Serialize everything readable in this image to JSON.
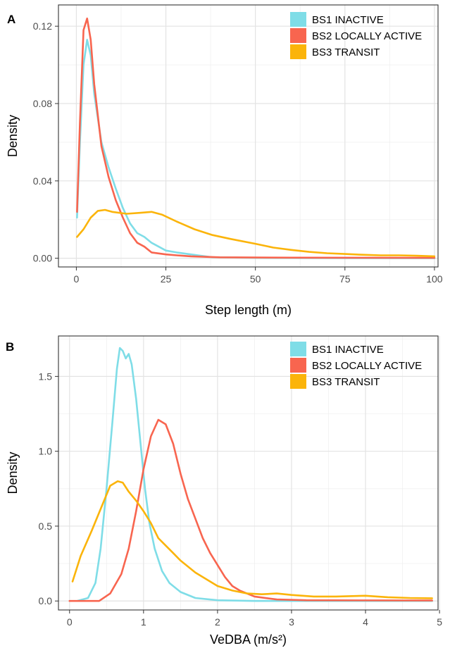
{
  "chart_data": [
    {
      "panel": "A",
      "type": "line",
      "xlabel": "Step length (m)",
      "ylabel": "Density",
      "xlim": [
        -5,
        101
      ],
      "ylim": [
        -0.0045,
        0.131
      ],
      "x_ticks": [
        0,
        25,
        50,
        75,
        100
      ],
      "x_tick_labels": [
        "0",
        "25",
        "50",
        "75",
        "100"
      ],
      "y_ticks": [
        0,
        0.04,
        0.08,
        0.12
      ],
      "y_tick_labels": [
        "0.00",
        "0.04",
        "0.08",
        "0.12"
      ],
      "grid": true,
      "legend_position": "top-right",
      "series": [
        {
          "name": "BS1 INACTIVE",
          "color": "#7fdde7",
          "points": [
            [
              0.2,
              0.021
            ],
            [
              1,
              0.06
            ],
            [
              2,
              0.1
            ],
            [
              3,
              0.113
            ],
            [
              4,
              0.105
            ],
            [
              5,
              0.085
            ],
            [
              7,
              0.06
            ],
            [
              9,
              0.047
            ],
            [
              11,
              0.036
            ],
            [
              13,
              0.026
            ],
            [
              15,
              0.018
            ],
            [
              17,
              0.013
            ],
            [
              19,
              0.011
            ],
            [
              21,
              0.008
            ],
            [
              23,
              0.006
            ],
            [
              25,
              0.004
            ],
            [
              28,
              0.003
            ],
            [
              32,
              0.002
            ],
            [
              38,
              0.0005
            ],
            [
              50,
              0.0002
            ],
            [
              75,
              0.0001
            ],
            [
              100,
              0
            ]
          ]
        },
        {
          "name": "BS2 LOCALLY ACTIVE",
          "color": "#f8654f",
          "points": [
            [
              0.2,
              0.024
            ],
            [
              1,
              0.07
            ],
            [
              2,
              0.118
            ],
            [
              3,
              0.124
            ],
            [
              4,
              0.113
            ],
            [
              5,
              0.09
            ],
            [
              7,
              0.058
            ],
            [
              9,
              0.042
            ],
            [
              11,
              0.03
            ],
            [
              13,
              0.021
            ],
            [
              15,
              0.013
            ],
            [
              17,
              0.008
            ],
            [
              19,
              0.006
            ],
            [
              21,
              0.003
            ],
            [
              25,
              0.002
            ],
            [
              28,
              0.0015
            ],
            [
              32,
              0.001
            ],
            [
              40,
              0.0005
            ],
            [
              60,
              0.0003
            ],
            [
              100,
              0.0002
            ]
          ]
        },
        {
          "name": "BS3 TRANSIT",
          "color": "#fbb40a",
          "points": [
            [
              0.2,
              0.011
            ],
            [
              2,
              0.015
            ],
            [
              4,
              0.021
            ],
            [
              6,
              0.0245
            ],
            [
              8,
              0.025
            ],
            [
              10,
              0.024
            ],
            [
              14,
              0.023
            ],
            [
              18,
              0.0235
            ],
            [
              21,
              0.024
            ],
            [
              24,
              0.0225
            ],
            [
              28,
              0.019
            ],
            [
              33,
              0.015
            ],
            [
              38,
              0.012
            ],
            [
              43,
              0.01
            ],
            [
              50,
              0.0075
            ],
            [
              55,
              0.0055
            ],
            [
              60,
              0.0043
            ],
            [
              65,
              0.0033
            ],
            [
              70,
              0.0026
            ],
            [
              75,
              0.0022
            ],
            [
              80,
              0.0018
            ],
            [
              85,
              0.0015
            ],
            [
              90,
              0.0015
            ],
            [
              95,
              0.0013
            ],
            [
              100,
              0.001
            ]
          ]
        }
      ]
    },
    {
      "panel": "B",
      "type": "line",
      "xlabel": "VeDBA (m/s²)",
      "ylabel": "Density",
      "xlim": [
        -0.15,
        4.98
      ],
      "ylim": [
        -0.06,
        1.77
      ],
      "x_ticks": [
        0,
        1,
        2,
        3,
        4,
        5
      ],
      "x_tick_labels": [
        "0",
        "1",
        "2",
        "3",
        "4",
        "5"
      ],
      "y_ticks": [
        0,
        0.5,
        1.0,
        1.5
      ],
      "y_tick_labels": [
        "0.0",
        "0.5",
        "1.0",
        "1.5"
      ],
      "grid": true,
      "legend_position": "top-right",
      "series": [
        {
          "name": "BS1 INACTIVE",
          "color": "#7fdde7",
          "points": [
            [
              0.1,
              0
            ],
            [
              0.25,
              0.02
            ],
            [
              0.35,
              0.12
            ],
            [
              0.42,
              0.35
            ],
            [
              0.5,
              0.75
            ],
            [
              0.58,
              1.2
            ],
            [
              0.64,
              1.55
            ],
            [
              0.68,
              1.69
            ],
            [
              0.72,
              1.67
            ],
            [
              0.76,
              1.62
            ],
            [
              0.8,
              1.65
            ],
            [
              0.84,
              1.58
            ],
            [
              0.9,
              1.35
            ],
            [
              0.96,
              1.05
            ],
            [
              1.02,
              0.75
            ],
            [
              1.08,
              0.52
            ],
            [
              1.15,
              0.35
            ],
            [
              1.25,
              0.2
            ],
            [
              1.35,
              0.12
            ],
            [
              1.5,
              0.06
            ],
            [
              1.7,
              0.02
            ],
            [
              2,
              0.005
            ],
            [
              2.5,
              0
            ],
            [
              4.9,
              0
            ]
          ]
        },
        {
          "name": "BS2 LOCALLY ACTIVE",
          "color": "#f8654f",
          "points": [
            [
              0,
              0
            ],
            [
              0.4,
              0
            ],
            [
              0.55,
              0.05
            ],
            [
              0.7,
              0.18
            ],
            [
              0.8,
              0.35
            ],
            [
              0.9,
              0.6
            ],
            [
              1.0,
              0.88
            ],
            [
              1.1,
              1.1
            ],
            [
              1.2,
              1.21
            ],
            [
              1.3,
              1.18
            ],
            [
              1.4,
              1.05
            ],
            [
              1.5,
              0.85
            ],
            [
              1.6,
              0.68
            ],
            [
              1.7,
              0.55
            ],
            [
              1.8,
              0.42
            ],
            [
              1.9,
              0.32
            ],
            [
              2.0,
              0.24
            ],
            [
              2.1,
              0.16
            ],
            [
              2.2,
              0.1
            ],
            [
              2.3,
              0.07
            ],
            [
              2.5,
              0.03
            ],
            [
              2.8,
              0.01
            ],
            [
              3.2,
              0.005
            ],
            [
              4.9,
              0.003
            ]
          ]
        },
        {
          "name": "BS3 TRANSIT",
          "color": "#fbb40a",
          "points": [
            [
              0.04,
              0.13
            ],
            [
              0.15,
              0.3
            ],
            [
              0.3,
              0.47
            ],
            [
              0.45,
              0.65
            ],
            [
              0.55,
              0.77
            ],
            [
              0.65,
              0.8
            ],
            [
              0.72,
              0.79
            ],
            [
              0.8,
              0.73
            ],
            [
              0.9,
              0.67
            ],
            [
              1.0,
              0.6
            ],
            [
              1.1,
              0.52
            ],
            [
              1.2,
              0.42
            ],
            [
              1.3,
              0.37
            ],
            [
              1.4,
              0.32
            ],
            [
              1.5,
              0.27
            ],
            [
              1.6,
              0.23
            ],
            [
              1.7,
              0.19
            ],
            [
              1.8,
              0.16
            ],
            [
              1.9,
              0.13
            ],
            [
              2.0,
              0.1
            ],
            [
              2.2,
              0.07
            ],
            [
              2.4,
              0.05
            ],
            [
              2.6,
              0.045
            ],
            [
              2.8,
              0.05
            ],
            [
              3.0,
              0.04
            ],
            [
              3.3,
              0.03
            ],
            [
              3.6,
              0.03
            ],
            [
              4.0,
              0.035
            ],
            [
              4.3,
              0.025
            ],
            [
              4.6,
              0.02
            ],
            [
              4.9,
              0.018
            ]
          ]
        }
      ]
    }
  ]
}
